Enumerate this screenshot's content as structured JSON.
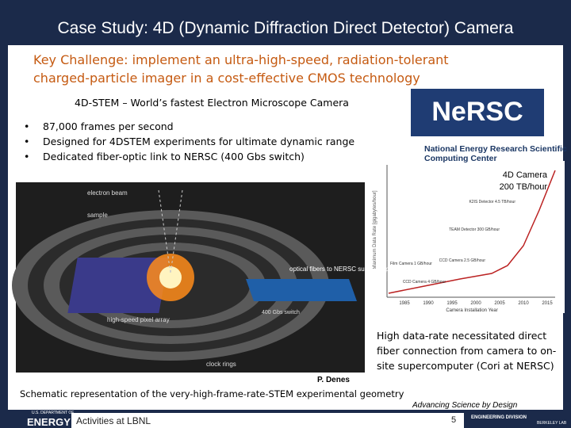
{
  "header": {
    "title": "Case Study: 4D (Dynamic Diffraction Direct Detector) Camera"
  },
  "challenge": "Key Challenge: implement an ultra-high-speed, radiation-tolerant charged-particle imager in a cost-effective CMOS technology",
  "subtitle": "4D-STEM – World’s fastest Electron Microscope Camera",
  "bullets": [
    "87,000 frames per second",
    "Designed for 4DSTEM experiments for ultimate dynamic range",
    "Dedicated fiber-optic link to NERSC (400 Gbs switch)"
  ],
  "nersc": {
    "logo": "NeRSC",
    "name": "National Energy Research Scientific Computing Center"
  },
  "rate_chart": {
    "callout": [
      "4D Camera",
      "200 TB/hour"
    ],
    "labels": [
      "K2IS Detector 4.5 TB/hour",
      "TEAM Detector 300 GB/hour",
      "CCD Camera 2.5 GB/hour",
      "Film Camera 1 GB/hour",
      "CCD Camera 4 GB/hour"
    ],
    "x_axis": [
      "1985",
      "1990",
      "1995",
      "2000",
      "2005",
      "2010",
      "2015"
    ],
    "x_label": "Camera Installation Year",
    "y_label": "Maximum Data Rate [gigabytes/hour]"
  },
  "schematic": {
    "labels": [
      "electron beam",
      "sample",
      "optical fibers to NERSC supercomputer",
      "high-speed pixel array",
      "400 Gbs switch",
      "clock rings"
    ]
  },
  "note": "High data-rate necessitated direct fiber connection from camera to on-site supercomputer (Cori at NERSC)",
  "author": "P. Denes",
  "caption": "Schematic representation of the very-high-frame-rate-STEM experimental geometry",
  "footer": {
    "tagline": "Advancing Science by Design",
    "label": "Activities at LBNL",
    "page": "5",
    "doe": "ENERGY",
    "doe_small": "U.S. DEPARTMENT OF",
    "division": "ENGINEERING DIVISION",
    "lab": "BERKELEY LAB"
  }
}
